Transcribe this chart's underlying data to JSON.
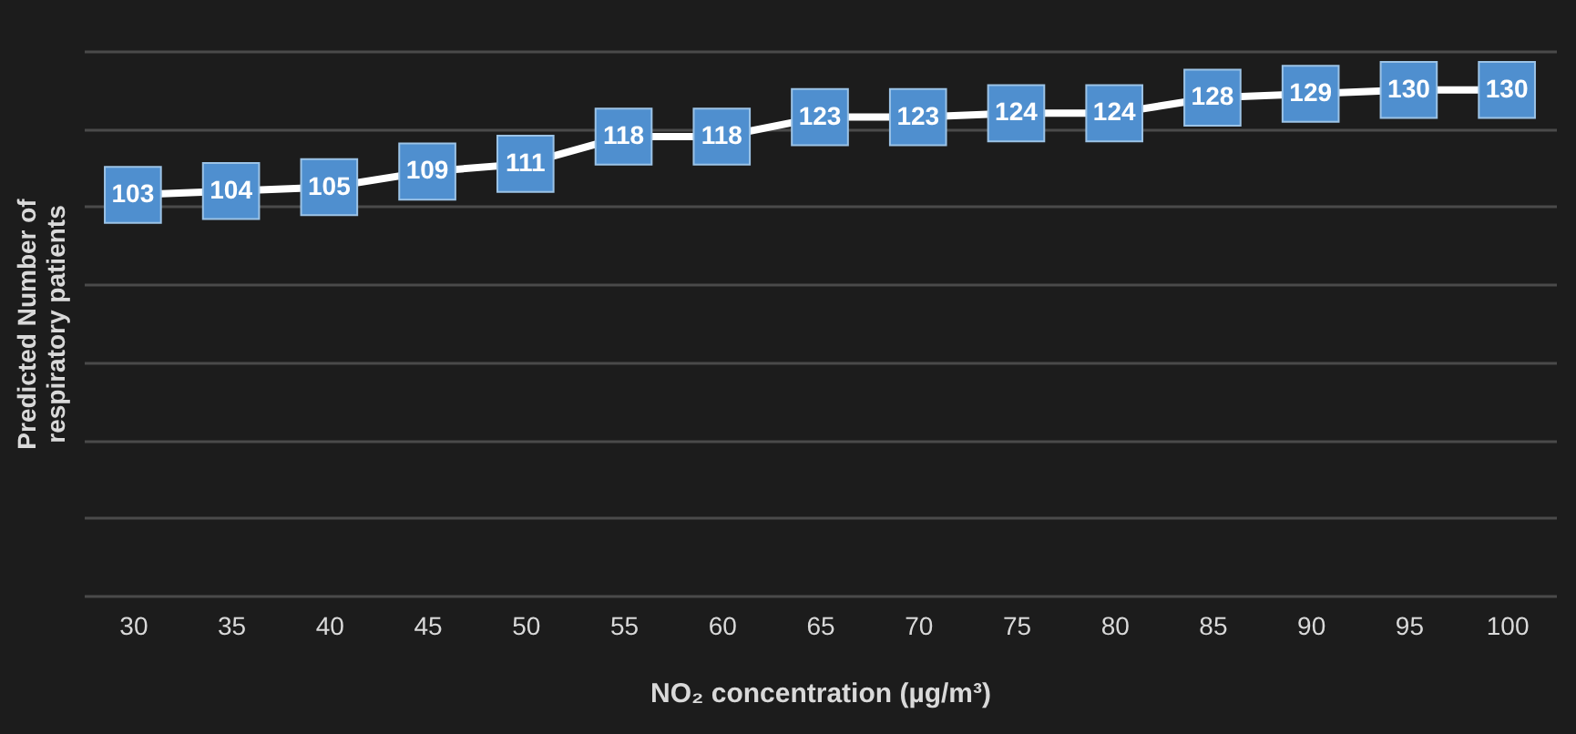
{
  "chart_data": {
    "type": "line",
    "xlabel": "NO₂ concentration (µg/m³)",
    "ylabel": "Predicted Number of  respiratory patients",
    "categories": [
      "30",
      "35",
      "40",
      "45",
      "50",
      "55",
      "60",
      "65",
      "70",
      "75",
      "80",
      "85",
      "90",
      "95",
      "100"
    ],
    "series": [
      {
        "color": "#ffffff",
        "values": [
          103,
          104,
          105,
          109,
          111,
          118,
          118,
          123,
          123,
          124,
          124,
          128,
          129,
          130,
          130
        ]
      }
    ],
    "ylim": [
      0,
      140
    ],
    "yticks": [
      {
        "value": 0,
        "label": null
      },
      {
        "value": 20,
        "label": null
      },
      {
        "value": 40,
        "label": null
      },
      {
        "value": 60,
        "label": null
      },
      {
        "value": 80,
        "label": null
      },
      {
        "value": 100,
        "label": null
      },
      {
        "value": 120,
        "label": null
      },
      {
        "value": 140,
        "label": null
      }
    ],
    "tick_labels": "x",
    "grid": "y",
    "data_labels": true,
    "marker": "square",
    "line_style": "solid",
    "legend": false
  }
}
